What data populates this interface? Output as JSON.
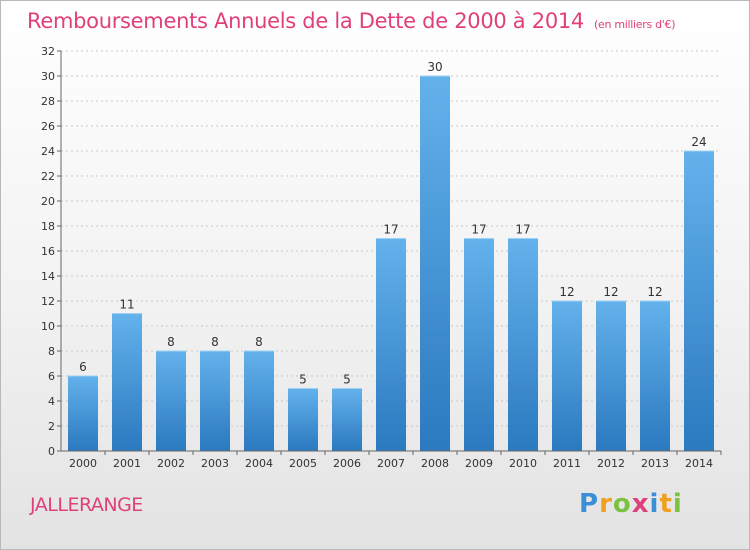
{
  "header": {
    "title": "Remboursements Annuels de la Dette de 2000 à 2014",
    "unit": "(en milliers d'€)"
  },
  "footer": {
    "commune": "JALLERANGE",
    "logo_letters": [
      {
        "ch": "P",
        "color": "#3a8fd6"
      },
      {
        "ch": "r",
        "color": "#f0a020"
      },
      {
        "ch": "o",
        "color": "#7cc242"
      },
      {
        "ch": "x",
        "color": "#e0407a"
      },
      {
        "ch": "i",
        "color": "#3a8fd6"
      },
      {
        "ch": "t",
        "color": "#f0a020"
      },
      {
        "ch": "i",
        "color": "#7cc242"
      }
    ]
  },
  "chart_data": {
    "type": "bar",
    "categories": [
      "2000",
      "2001",
      "2002",
      "2003",
      "2004",
      "2005",
      "2006",
      "2007",
      "2008",
      "2009",
      "2010",
      "2011",
      "2012",
      "2013",
      "2014"
    ],
    "values": [
      6,
      11,
      8,
      8,
      8,
      5,
      5,
      17,
      30,
      17,
      17,
      12,
      12,
      12,
      24
    ],
    "title": "Remboursements Annuels de la Dette de 2000 à 2014",
    "xlabel": "",
    "ylabel": "",
    "ylim": [
      0,
      32
    ],
    "yticks": [
      0,
      2,
      4,
      6,
      8,
      10,
      12,
      14,
      16,
      18,
      20,
      22,
      24,
      26,
      28,
      30,
      32
    ],
    "grid": true,
    "bar_color_top": "#63b2ec",
    "bar_color_bottom": "#2b79bf"
  }
}
